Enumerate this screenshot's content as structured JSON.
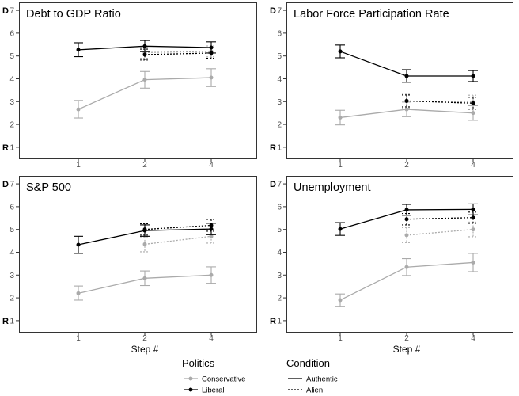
{
  "chart_data": {
    "type": "line",
    "x": [
      1,
      2,
      4
    ],
    "xlabel": "Step #",
    "yticks": [
      1,
      2,
      3,
      4,
      5,
      6,
      7
    ],
    "ylim": [
      0.51,
      7.35
    ],
    "y_end_labels": {
      "top": "D",
      "bottom": "R"
    },
    "grid": false,
    "legend": {
      "position": "bottom",
      "groups": [
        {
          "title": "Politics",
          "entries": [
            {
              "label": "Conservative",
              "color": "#aaaaaa",
              "dotted": false,
              "marker": true
            },
            {
              "label": "Liberal",
              "color": "#000000",
              "dotted": false,
              "marker": true
            }
          ]
        },
        {
          "title": "Condition",
          "entries": [
            {
              "label": "Authentic",
              "color": "#000000",
              "dotted": false,
              "marker": false
            },
            {
              "label": "Alien",
              "color": "#000000",
              "dotted": true,
              "marker": false
            }
          ]
        }
      ]
    },
    "panels": [
      {
        "title": "Debt to GDP Ratio",
        "series": [
          {
            "color": "#aaaaaa",
            "dotted": false,
            "y": [
              2.66,
              3.96,
              4.05
            ],
            "ymin": [
              2.28,
              3.59,
              3.66
            ],
            "ymax": [
              3.05,
              4.32,
              4.44
            ]
          },
          {
            "color": "#aaaaaa",
            "dotted": true,
            "y": [
              null,
              5.15,
              5.2
            ],
            "ymin": [
              null,
              4.9,
              4.96
            ],
            "ymax": [
              null,
              5.4,
              5.44
            ]
          },
          {
            "color": "#000000",
            "dotted": false,
            "y": [
              5.27,
              5.43,
              5.37
            ],
            "ymin": [
              4.97,
              5.19,
              5.13
            ],
            "ymax": [
              5.58,
              5.68,
              5.62
            ]
          },
          {
            "color": "#000000",
            "dotted": true,
            "y": [
              null,
              5.06,
              5.13
            ],
            "ymin": [
              null,
              4.82,
              4.9
            ],
            "ymax": [
              null,
              5.3,
              5.36
            ]
          }
        ]
      },
      {
        "title": "Labor Force Participation Rate",
        "series": [
          {
            "color": "#aaaaaa",
            "dotted": false,
            "y": [
              2.3,
              2.66,
              2.5
            ],
            "ymin": [
              1.98,
              2.34,
              2.18
            ],
            "ymax": [
              2.62,
              2.98,
              2.82
            ]
          },
          {
            "color": "#aaaaaa",
            "dotted": true,
            "y": [
              null,
              3.02,
              2.98
            ],
            "ymin": [
              null,
              2.72,
              2.68
            ],
            "ymax": [
              null,
              3.32,
              3.28
            ]
          },
          {
            "color": "#000000",
            "dotted": false,
            "y": [
              5.2,
              4.12,
              4.12
            ],
            "ymin": [
              4.92,
              3.85,
              3.88
            ],
            "ymax": [
              5.48,
              4.4,
              4.36
            ]
          },
          {
            "color": "#000000",
            "dotted": true,
            "y": [
              null,
              3.03,
              2.93
            ],
            "ymin": [
              null,
              2.77,
              2.67
            ],
            "ymax": [
              null,
              3.29,
              3.19
            ]
          }
        ]
      },
      {
        "title": "S&P 500",
        "series": [
          {
            "color": "#aaaaaa",
            "dotted": false,
            "y": [
              2.2,
              2.86,
              3.0
            ],
            "ymin": [
              1.9,
              2.54,
              2.64
            ],
            "ymax": [
              2.52,
              3.18,
              3.36
            ]
          },
          {
            "color": "#aaaaaa",
            "dotted": true,
            "y": [
              null,
              4.35,
              4.7
            ],
            "ymin": [
              null,
              4.02,
              4.4
            ],
            "ymax": [
              null,
              4.68,
              5.0
            ]
          },
          {
            "color": "#000000",
            "dotted": false,
            "y": [
              4.33,
              4.95,
              5.02
            ],
            "ymin": [
              3.95,
              4.7,
              4.77
            ],
            "ymax": [
              4.7,
              5.2,
              5.27
            ]
          },
          {
            "color": "#000000",
            "dotted": true,
            "y": [
              null,
              5.0,
              5.18
            ],
            "ymin": [
              null,
              4.75,
              4.92
            ],
            "ymax": [
              null,
              5.25,
              5.44
            ]
          }
        ]
      },
      {
        "title": "Unemployment",
        "series": [
          {
            "color": "#aaaaaa",
            "dotted": false,
            "y": [
              1.9,
              3.35,
              3.55
            ],
            "ymin": [
              1.63,
              2.98,
              3.15
            ],
            "ymax": [
              2.17,
              3.72,
              3.95
            ]
          },
          {
            "color": "#aaaaaa",
            "dotted": true,
            "y": [
              null,
              4.75,
              5.0
            ],
            "ymin": [
              null,
              4.42,
              4.68
            ],
            "ymax": [
              null,
              5.08,
              5.32
            ]
          },
          {
            "color": "#000000",
            "dotted": false,
            "y": [
              5.02,
              5.86,
              5.88
            ],
            "ymin": [
              4.74,
              5.62,
              5.64
            ],
            "ymax": [
              5.3,
              6.1,
              6.12
            ]
          },
          {
            "color": "#000000",
            "dotted": true,
            "y": [
              null,
              5.45,
              5.52
            ],
            "ymin": [
              null,
              5.2,
              5.27
            ],
            "ymax": [
              null,
              5.7,
              5.76
            ]
          }
        ]
      }
    ]
  }
}
